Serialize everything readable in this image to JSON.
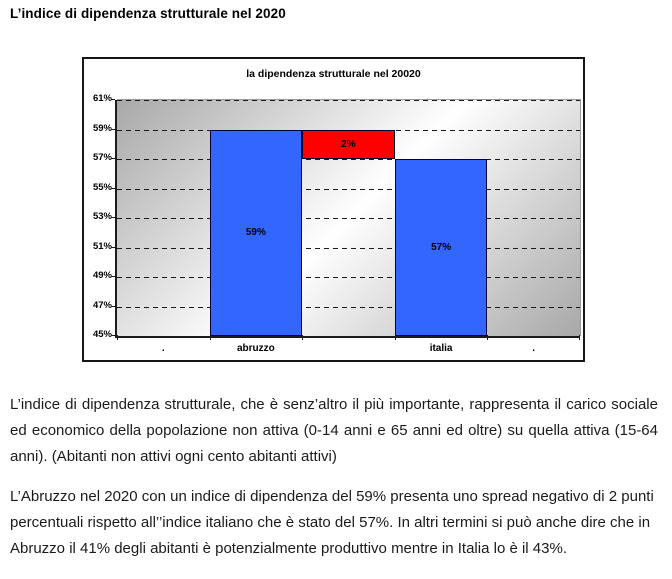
{
  "doc": {
    "title": "L’indice di dipendenza strutturale nel 2020",
    "paragraphs": [
      "L’indice di dipendenza strutturale, che è senz’altro il più importante, rappresenta il carico sociale ed economico della popolazione non attiva (0-14 anni e 65 anni ed oltre) su quella attiva (15-64 anni). (Abitanti non attivi ogni cento abitanti attivi)",
      "L’Abruzzo nel 2020 con un  indice di dipendenza del 59% presenta uno spread negativo di 2 punti percentuali rispetto all’’indice italiano che è stato del 57%. In altri termini si può anche dire che in Abruzzo il 41% degli abitanti è potenzialmente produttivo mentre in Italia lo è il 43%."
    ]
  },
  "chart_data": {
    "type": "bar",
    "title": "la dipendenza strutturale nel 20020",
    "categories": [
      ".",
      "abruzzo",
      "",
      "italia",
      "."
    ],
    "ylim": [
      45,
      61
    ],
    "y_tick_step": 2,
    "y_tick_labels": [
      "61%",
      "59%",
      "57%",
      "55%",
      "53%",
      "51%",
      "49%",
      "47%",
      "45%"
    ],
    "grid": "horizontal-dashed",
    "legend": "none",
    "bars": [
      {
        "name": "abruzzo",
        "col": 1,
        "from": 45,
        "to": 59,
        "label": "59%",
        "color": "#3366ff"
      },
      {
        "name": "spread",
        "col": 2,
        "from": 57,
        "to": 59,
        "label": "2%",
        "color": "#ff0000"
      },
      {
        "name": "italia",
        "col": 3,
        "from": 45,
        "to": 57,
        "label": "57%",
        "color": "#3366ff"
      }
    ],
    "colors": {
      "bar_blue": "#3366ff",
      "bar_red": "#ff0000",
      "bar_border": "#000033",
      "grid_color": "#1a1a1a",
      "plot_gradient_edge": "#a8a8a8",
      "plot_gradient_mid": "#ffffff"
    }
  }
}
